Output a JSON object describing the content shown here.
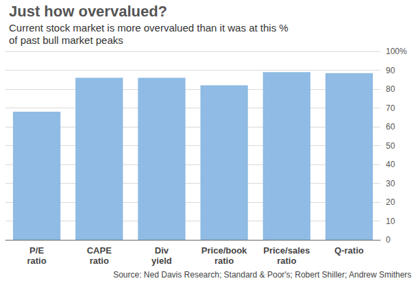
{
  "chart_data": {
    "type": "bar",
    "title": "Just how overvalued?",
    "subtitle": "Current stock market is more overvalued than it was at this %\nof past bull market peaks",
    "source": "Source: Ned Davis Research; Standard & Poor's; Robert Shiller; Andrew Smithers",
    "categories": [
      "P/E\nratio",
      "CAPE\nratio",
      "Div\nyield",
      "Price/book\nratio",
      "Price/sales\nratio",
      "Q-ratio"
    ],
    "values": [
      68,
      86,
      86,
      82,
      89,
      88.5
    ],
    "color": "#8fbbe4",
    "ylim": [
      0,
      100
    ],
    "yticks": [
      0,
      10,
      20,
      30,
      40,
      50,
      60,
      70,
      80,
      90,
      {
        "value": 100,
        "label": "100%"
      }
    ],
    "grid": true,
    "data_labels": false
  }
}
